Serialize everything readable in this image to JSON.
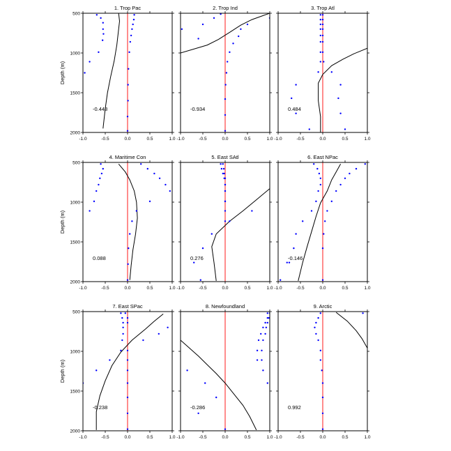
{
  "chart_data": {
    "type": "line",
    "description_layout": "3x3 panel grid",
    "ylabel": "Depth (m)",
    "ylim": [
      500,
      2000
    ],
    "xlim": [
      -1.0,
      1.0
    ],
    "x_ticks": [
      "-1.0",
      "-0.5",
      "0.0",
      "0.5",
      "1.0"
    ],
    "y_ticks": [
      "500",
      "1000",
      "1500",
      "2000"
    ],
    "panels": [
      {
        "title": "1. Trop Pac",
        "value_label": "-0.448",
        "line": [
          [
            -0.2,
            500
          ],
          [
            -0.18,
            600
          ],
          [
            -0.2,
            700
          ],
          [
            -0.24,
            900
          ],
          [
            -0.3,
            1100
          ],
          [
            -0.38,
            1300
          ],
          [
            -0.45,
            1500
          ],
          [
            -0.5,
            1700
          ],
          [
            -0.55,
            1950
          ]
        ],
        "dots_left": [
          [
            -0.69,
            520
          ],
          [
            -0.6,
            560
          ],
          [
            -0.55,
            620
          ],
          [
            -0.55,
            700
          ],
          [
            -0.54,
            760
          ],
          [
            -0.56,
            840
          ],
          [
            -0.65,
            990
          ],
          [
            -0.85,
            1110
          ],
          [
            -0.96,
            1250
          ]
        ],
        "dots_right": [
          [
            0.15,
            520
          ],
          [
            0.14,
            580
          ],
          [
            0.12,
            640
          ],
          [
            0.1,
            700
          ],
          [
            0.08,
            780
          ],
          [
            0.06,
            860
          ],
          [
            0.04,
            990
          ],
          [
            0.02,
            1200
          ],
          [
            0.01,
            1400
          ],
          [
            0.01,
            1600
          ],
          [
            0.0,
            1800
          ],
          [
            0.0,
            1980
          ]
        ]
      },
      {
        "title": "2. Trop Ind",
        "value_label": "-0.934",
        "line": [
          [
            1.0,
            500
          ],
          [
            0.85,
            530
          ],
          [
            0.6,
            580
          ],
          [
            0.35,
            650
          ],
          [
            0.1,
            740
          ],
          [
            -0.15,
            830
          ],
          [
            -0.4,
            900
          ],
          [
            -1.0,
            1000
          ]
        ],
        "dots_left": [
          [
            -0.1,
            510
          ],
          [
            -0.25,
            560
          ],
          [
            -0.5,
            640
          ],
          [
            -0.97,
            700
          ],
          [
            -0.6,
            820
          ]
        ],
        "dots_right": [
          [
            1.0,
            560
          ],
          [
            0.5,
            640
          ],
          [
            0.35,
            700
          ],
          [
            0.3,
            790
          ],
          [
            0.18,
            880
          ],
          [
            0.1,
            990
          ],
          [
            0.05,
            1110
          ],
          [
            0.03,
            1250
          ],
          [
            0.01,
            1400
          ],
          [
            0.0,
            1580
          ],
          [
            0.0,
            1780
          ],
          [
            0.0,
            1980
          ]
        ]
      },
      {
        "title": "3. Trop Atl",
        "value_label": "0.484",
        "line": [
          [
            1.0,
            940
          ],
          [
            0.7,
            1010
          ],
          [
            0.45,
            1080
          ],
          [
            0.2,
            1160
          ],
          [
            0.0,
            1270
          ],
          [
            -0.1,
            1380
          ],
          [
            -0.1,
            1600
          ],
          [
            -0.05,
            1800
          ],
          [
            -0.05,
            2000
          ]
        ],
        "dots_left": [
          [
            -0.05,
            520
          ],
          [
            -0.05,
            580
          ],
          [
            -0.05,
            640
          ],
          [
            -0.05,
            700
          ],
          [
            -0.05,
            780
          ],
          [
            -0.05,
            860
          ],
          [
            -0.05,
            990
          ],
          [
            -0.05,
            1110
          ],
          [
            -0.1,
            1240
          ],
          [
            -0.6,
            1400
          ],
          [
            -0.7,
            1570
          ],
          [
            -0.6,
            1760
          ],
          [
            -0.3,
            1960
          ]
        ],
        "dots_right": [
          [
            0.0,
            520
          ],
          [
            0.0,
            580
          ],
          [
            0.0,
            640
          ],
          [
            0.0,
            700
          ],
          [
            0.0,
            780
          ],
          [
            0.0,
            860
          ],
          [
            0.0,
            990
          ],
          [
            0.02,
            1110
          ],
          [
            0.2,
            1240
          ],
          [
            0.4,
            1400
          ],
          [
            0.35,
            1570
          ],
          [
            0.4,
            1760
          ],
          [
            0.5,
            1960
          ]
        ]
      },
      {
        "title": "4. Maritime Con",
        "value_label": "0.088",
        "line": [
          [
            -0.2,
            520
          ],
          [
            -0.05,
            620
          ],
          [
            0.05,
            720
          ],
          [
            0.15,
            860
          ],
          [
            0.2,
            1000
          ],
          [
            0.22,
            1200
          ],
          [
            0.18,
            1400
          ],
          [
            0.12,
            1600
          ],
          [
            0.08,
            1800
          ],
          [
            0.05,
            1980
          ]
        ],
        "dots_left": [
          [
            -0.6,
            520
          ],
          [
            -0.55,
            580
          ],
          [
            -0.58,
            640
          ],
          [
            -0.62,
            700
          ],
          [
            -0.65,
            780
          ],
          [
            -0.7,
            860
          ],
          [
            -0.75,
            990
          ],
          [
            -0.85,
            1110
          ]
        ],
        "dots_right": [
          [
            0.3,
            520
          ],
          [
            0.45,
            580
          ],
          [
            0.6,
            640
          ],
          [
            0.72,
            700
          ],
          [
            0.85,
            780
          ],
          [
            0.95,
            860
          ],
          [
            0.5,
            990
          ],
          [
            0.2,
            1110
          ],
          [
            0.1,
            1240
          ],
          [
            0.05,
            1400
          ],
          [
            0.02,
            1580
          ],
          [
            0.01,
            1780
          ],
          [
            0.0,
            1980
          ]
        ]
      },
      {
        "title": "5. East SAtl",
        "value_label": "0.276",
        "line": [
          [
            1.0,
            830
          ],
          [
            0.7,
            970
          ],
          [
            0.4,
            1110
          ],
          [
            0.1,
            1240
          ],
          [
            -0.2,
            1400
          ],
          [
            -0.3,
            1560
          ],
          [
            -0.25,
            1760
          ],
          [
            -0.2,
            1990
          ]
        ],
        "dots_left": [
          [
            -0.05,
            520
          ],
          [
            -0.03,
            580
          ],
          [
            -0.02,
            640
          ],
          [
            0.0,
            700
          ],
          [
            0.0,
            780
          ],
          [
            0.0,
            860
          ],
          [
            0.0,
            990
          ],
          [
            0.0,
            1110
          ],
          [
            0.0,
            1240
          ],
          [
            -0.3,
            1400
          ],
          [
            -0.5,
            1580
          ],
          [
            -0.7,
            1760
          ],
          [
            -0.55,
            1980
          ]
        ],
        "dots_right": [
          [
            -0.1,
            520
          ],
          [
            -0.08,
            580
          ],
          [
            -0.05,
            640
          ],
          [
            -0.02,
            700
          ],
          [
            0.0,
            780
          ],
          [
            0.0,
            860
          ],
          [
            0.0,
            990
          ],
          [
            0.6,
            1110
          ],
          [
            0.1,
            1240
          ]
        ]
      },
      {
        "title": "6. East NPac",
        "value_label": "-0.146",
        "line": [
          [
            0.4,
            520
          ],
          [
            0.3,
            620
          ],
          [
            0.2,
            720
          ],
          [
            0.1,
            860
          ],
          [
            -0.05,
            1010
          ],
          [
            -0.15,
            1180
          ],
          [
            -0.25,
            1370
          ],
          [
            -0.35,
            1560
          ],
          [
            -0.45,
            1760
          ],
          [
            -0.55,
            1990
          ]
        ],
        "dots_left": [
          [
            -0.2,
            520
          ],
          [
            -0.12,
            580
          ],
          [
            -0.08,
            640
          ],
          [
            -0.05,
            700
          ],
          [
            -0.05,
            780
          ],
          [
            -0.1,
            860
          ],
          [
            -0.15,
            990
          ],
          [
            -0.25,
            1110
          ],
          [
            -0.45,
            1240
          ],
          [
            -0.6,
            1400
          ],
          [
            -0.65,
            1580
          ],
          [
            -0.75,
            1760
          ],
          [
            -0.95,
            1980
          ]
        ],
        "dots_right": [
          [
            0.95,
            520
          ],
          [
            0.75,
            580
          ],
          [
            0.6,
            640
          ],
          [
            0.5,
            700
          ],
          [
            0.4,
            780
          ],
          [
            0.3,
            860
          ],
          [
            0.2,
            990
          ],
          [
            0.1,
            1110
          ],
          [
            0.05,
            1240
          ],
          [
            0.02,
            1400
          ],
          [
            0.0,
            1580
          ],
          [
            -0.8,
            1760
          ],
          [
            0.0,
            1980
          ]
        ]
      },
      {
        "title": "7. East SPac",
        "value_label": "-0.238",
        "line": [
          [
            0.8,
            530
          ],
          [
            0.6,
            620
          ],
          [
            0.4,
            720
          ],
          [
            0.1,
            860
          ],
          [
            -0.15,
            1010
          ],
          [
            -0.35,
            1180
          ],
          [
            -0.5,
            1370
          ],
          [
            -0.62,
            1560
          ],
          [
            -0.7,
            1760
          ],
          [
            -0.7,
            1990
          ]
        ],
        "dots_left": [
          [
            -0.15,
            520
          ],
          [
            -0.12,
            580
          ],
          [
            -0.1,
            640
          ],
          [
            -0.1,
            700
          ],
          [
            -0.1,
            780
          ],
          [
            -0.12,
            860
          ],
          [
            -0.15,
            990
          ],
          [
            -0.4,
            1110
          ],
          [
            -0.7,
            1240
          ],
          [
            -1.0,
            1400
          ]
        ],
        "dots_right": [
          [
            -0.05,
            520
          ],
          [
            0.0,
            580
          ],
          [
            0.0,
            640
          ],
          [
            0.9,
            700
          ],
          [
            0.7,
            780
          ],
          [
            0.35,
            860
          ],
          [
            0.0,
            990
          ],
          [
            0.0,
            1110
          ],
          [
            0.0,
            1240
          ],
          [
            0.0,
            1400
          ],
          [
            0.0,
            1580
          ],
          [
            0.0,
            1780
          ],
          [
            0.0,
            1980
          ]
        ]
      },
      {
        "title": "8. Newfoundland",
        "value_label": "-0.286",
        "line": [
          [
            -1.0,
            860
          ],
          [
            -0.8,
            960
          ],
          [
            -0.6,
            1060
          ],
          [
            -0.4,
            1170
          ],
          [
            -0.2,
            1280
          ],
          [
            0.0,
            1400
          ],
          [
            0.2,
            1540
          ],
          [
            0.4,
            1680
          ],
          [
            0.55,
            1820
          ],
          [
            0.7,
            1990
          ]
        ],
        "dots_left": [
          [
            0.95,
            520
          ],
          [
            0.95,
            580
          ],
          [
            0.9,
            640
          ],
          [
            0.85,
            700
          ],
          [
            0.8,
            780
          ],
          [
            0.75,
            860
          ],
          [
            0.72,
            990
          ],
          [
            0.72,
            1110
          ],
          [
            -0.85,
            1240
          ],
          [
            -0.45,
            1400
          ],
          [
            -0.2,
            1580
          ],
          [
            -0.6,
            1780
          ],
          [
            0.0,
            1980
          ]
        ],
        "dots_right": [
          [
            1.0,
            520
          ],
          [
            0.98,
            580
          ],
          [
            0.95,
            640
          ],
          [
            0.92,
            700
          ],
          [
            0.9,
            780
          ],
          [
            0.85,
            860
          ],
          [
            0.82,
            990
          ],
          [
            0.82,
            1110
          ],
          [
            0.85,
            1240
          ],
          [
            0.95,
            1400
          ]
        ]
      },
      {
        "title": "9. Arctic",
        "value_label": "0.992",
        "line": [
          [
            0.3,
            510
          ],
          [
            0.55,
            620
          ],
          [
            0.75,
            740
          ],
          [
            0.88,
            840
          ],
          [
            1.0,
            960
          ]
        ],
        "dots_left": [
          [
            -0.05,
            520
          ],
          [
            -0.1,
            580
          ],
          [
            -0.15,
            640
          ],
          [
            -0.18,
            700
          ],
          [
            -0.15,
            780
          ],
          [
            -0.1,
            860
          ],
          [
            -0.05,
            990
          ],
          [
            -0.05,
            1110
          ],
          [
            -0.02,
            1240
          ],
          [
            0.0,
            1400
          ],
          [
            0.0,
            1580
          ],
          [
            0.0,
            1780
          ],
          [
            0.0,
            1980
          ]
        ],
        "dots_right": [
          [
            0.9,
            520
          ]
        ]
      }
    ]
  }
}
